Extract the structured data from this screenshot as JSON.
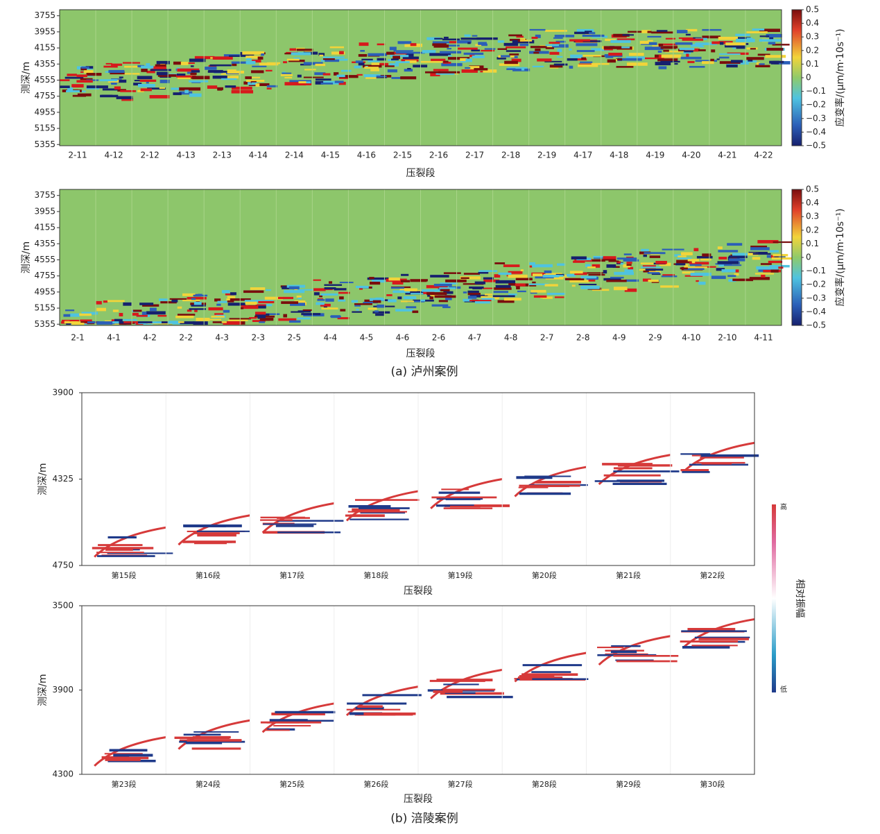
{
  "chart_data": [
    {
      "type": "heatmap",
      "ylabel": "测深/m",
      "xlabel": "压裂段",
      "categories": [
        "2-11",
        "4-12",
        "2-12",
        "4-13",
        "2-13",
        "4-14",
        "2-14",
        "4-15",
        "4-16",
        "2-15",
        "2-16",
        "2-17",
        "2-18",
        "2-19",
        "4-17",
        "4-18",
        "4-19",
        "4-20",
        "4-21",
        "4-22"
      ],
      "ylim": [
        5370,
        3680
      ],
      "yticks": [
        3755,
        3955,
        4155,
        4355,
        4555,
        4755,
        4955,
        5155,
        5355
      ],
      "colorbar_label": "应变率/(μm/m·10s⁻¹)",
      "clim": [
        -0.5,
        0.5
      ],
      "colorbar_ticks": [
        0.5,
        0.4,
        0.3,
        0.2,
        0.1,
        0,
        {
          "value": -0.1,
          "label": "−0.1"
        },
        {
          "value": -0.2,
          "label": "−0.2"
        },
        {
          "value": -0.3,
          "label": "−0.3"
        },
        {
          "value": -0.4,
          "label": "−0.4"
        },
        {
          "value": -0.5,
          "label": "−0.5"
        }
      ]
    },
    {
      "type": "heatmap",
      "ylabel": "测深/m",
      "xlabel": "压裂段",
      "caption": "(a) 泸州案例",
      "categories": [
        "2-1",
        "4-1",
        "4-2",
        "2-2",
        "4-3",
        "2-3",
        "2-5",
        "4-4",
        "4-5",
        "4-6",
        "2-6",
        "4-7",
        "4-8",
        "2-7",
        "2-8",
        "4-9",
        "2-9",
        "4-10",
        "2-10",
        "4-11"
      ],
      "ylim": [
        5370,
        3680
      ],
      "yticks": [
        3755,
        3955,
        4155,
        4355,
        4555,
        4755,
        4955,
        5155,
        5355
      ],
      "colorbar_label": "应变率/(μm/m·10s⁻¹)",
      "clim": [
        -0.5,
        0.5
      ],
      "colorbar_ticks": [
        0.5,
        0.4,
        0.3,
        0.2,
        0.1,
        0,
        {
          "value": -0.1,
          "label": "−0.1"
        },
        {
          "value": -0.2,
          "label": "−0.2"
        },
        {
          "value": -0.3,
          "label": "−0.3"
        },
        {
          "value": -0.4,
          "label": "−0.4"
        },
        {
          "value": -0.5,
          "label": "−0.5"
        }
      ]
    },
    {
      "type": "waterfall",
      "ylabel": "测深/m",
      "xlabel": "压裂段",
      "categories": [
        "第15段",
        "第16段",
        "第17段",
        "第18段",
        "第19段",
        "第20段",
        "第21段",
        "第22段"
      ],
      "ylim": [
        4750,
        3900
      ],
      "yticks": [
        3900,
        4325,
        4750
      ],
      "colorbar_label": "相对振幅",
      "colorbar_high": "高",
      "colorbar_low": "低"
    },
    {
      "type": "waterfall",
      "ylabel": "测深/m",
      "xlabel": "压裂段",
      "caption": "(b) 涪陵案例",
      "categories": [
        "第23段",
        "第24段",
        "第25段",
        "第26段",
        "第27段",
        "第28段",
        "第29段",
        "第30段"
      ],
      "ylim": [
        4300,
        3500
      ],
      "yticks": [
        3500,
        3900,
        4300
      ]
    }
  ]
}
